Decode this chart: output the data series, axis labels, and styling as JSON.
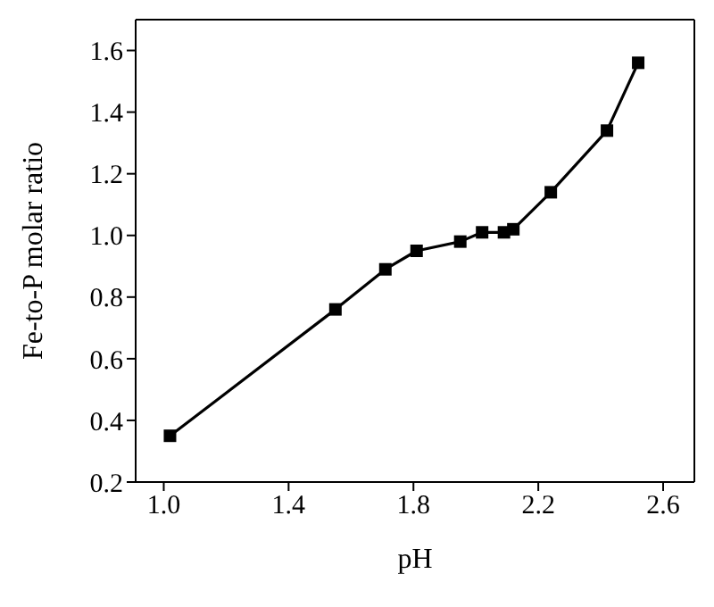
{
  "chart_data": {
    "type": "line",
    "xlabel": "pH",
    "ylabel": "Fe-to-P molar ratio",
    "x": [
      1.02,
      1.55,
      1.71,
      1.81,
      1.95,
      2.02,
      2.09,
      2.12,
      2.24,
      2.42,
      2.52
    ],
    "series": [
      {
        "color": "#000000",
        "values": [
          0.35,
          0.76,
          0.89,
          0.95,
          0.98,
          1.01,
          1.01,
          1.02,
          1.14,
          1.34,
          1.56
        ]
      }
    ],
    "xlim": [
      0.91,
      2.7
    ],
    "xticks": [
      {
        "value": 1,
        "label": "1.0"
      },
      1.4,
      1.8,
      2.2,
      2.6
    ],
    "ylim": [
      0.2,
      1.7
    ],
    "yticks": [
      0.2,
      0.4,
      0.6,
      0.8,
      {
        "value": 1,
        "label": "1.0"
      },
      1.2,
      1.4,
      1.6
    ],
    "marker": "square",
    "line_style": "solid",
    "grid": false,
    "legend": false
  }
}
